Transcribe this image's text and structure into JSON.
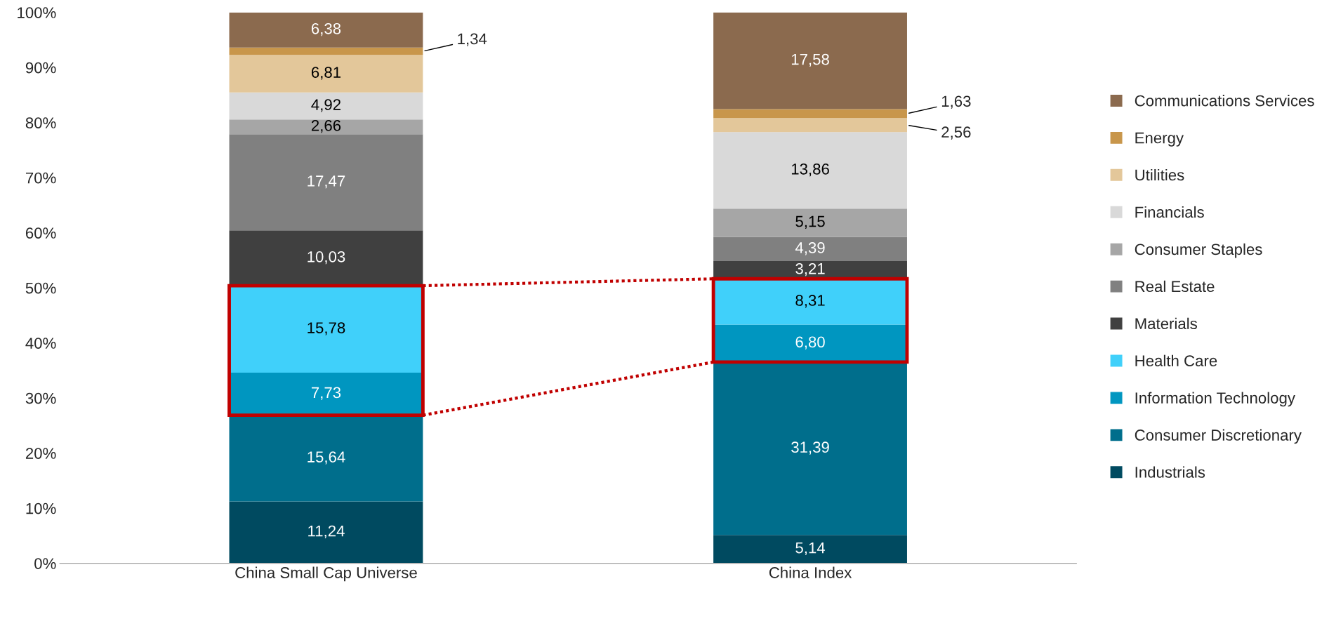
{
  "chart_data": {
    "type": "bar",
    "stacked": true,
    "categories": [
      "China Small Cap Universe",
      "China Index"
    ],
    "ylim": [
      0,
      100
    ],
    "yticks": [
      {
        "value": 0,
        "label": "0%"
      },
      {
        "value": 10,
        "label": "10%"
      },
      {
        "value": 20,
        "label": "20%"
      },
      {
        "value": 30,
        "label": "30%"
      },
      {
        "value": 40,
        "label": "40%"
      },
      {
        "value": 50,
        "label": "50%"
      },
      {
        "value": 60,
        "label": "60%"
      },
      {
        "value": 70,
        "label": "70%"
      },
      {
        "value": 80,
        "label": "80%"
      },
      {
        "value": 90,
        "label": "90%"
      },
      {
        "value": 100,
        "label": "100%"
      }
    ],
    "grid": false,
    "legend": "right",
    "series": [
      {
        "name": "Industrials",
        "color": "#004a60",
        "values": [
          11.24,
          5.14
        ],
        "value_labels": [
          "11,24",
          "5,14"
        ]
      },
      {
        "name": "Consumer Discretionary",
        "color": "#006e8c",
        "values": [
          15.64,
          31.39
        ],
        "value_labels": [
          "15,64",
          "31,39"
        ]
      },
      {
        "name": "Information Technology",
        "color": "#0096c0",
        "values": [
          7.73,
          6.8
        ],
        "value_labels": [
          "7,73",
          "6,80"
        ]
      },
      {
        "name": "Health Care",
        "color": "#40d0fa",
        "values": [
          15.78,
          8.31
        ],
        "value_labels": [
          "15,78",
          "8,31"
        ]
      },
      {
        "name": "Materials",
        "color": "#404040",
        "values": [
          10.03,
          3.21
        ],
        "value_labels": [
          "10,03",
          "3,21"
        ]
      },
      {
        "name": "Real Estate",
        "color": "#808080",
        "values": [
          17.47,
          4.39
        ],
        "value_labels": [
          "17,47",
          "4,39"
        ]
      },
      {
        "name": "Consumer Staples",
        "color": "#a6a6a6",
        "values": [
          2.66,
          5.15
        ],
        "value_labels": [
          "2,66",
          "5,15"
        ]
      },
      {
        "name": "Financials",
        "color": "#d9d9d9",
        "values": [
          4.92,
          13.86
        ],
        "value_labels": [
          "4,92",
          "13,86"
        ]
      },
      {
        "name": "Utilities",
        "color": "#e3c79a",
        "values": [
          6.81,
          2.56
        ],
        "value_labels": [
          "6,81",
          "2,56"
        ]
      },
      {
        "name": "Energy",
        "color": "#c8964b",
        "values": [
          1.34,
          1.63
        ],
        "value_labels": [
          "1,34",
          "1,63"
        ]
      },
      {
        "name": "Communications Services",
        "color": "#8b6a4e",
        "values": [
          6.38,
          17.58
        ],
        "value_labels": [
          "6,38",
          "17,58"
        ]
      }
    ]
  }
}
